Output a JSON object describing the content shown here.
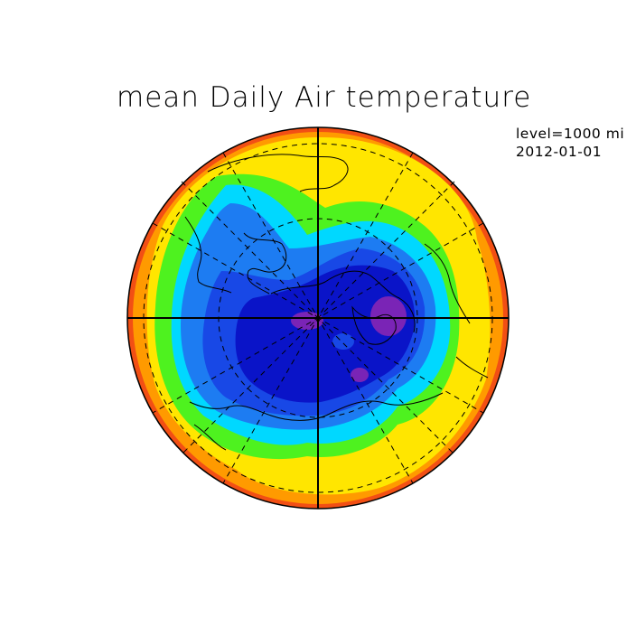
{
  "title": "mean Daily Air temperature",
  "meta": {
    "level": "level=1000 mi",
    "date": "2012-01-01"
  },
  "map": {
    "projection": "north-polar-stereographic",
    "grid_lines": "dashed",
    "palette": {
      "red": "#f24f14",
      "orange": "#ff9a00",
      "yellow": "#ffe600",
      "green": "#4ef21f",
      "cyan": "#00d8ff",
      "blue_light": "#1d7cf2",
      "blue": "#1848e6",
      "blue_dark": "#0a14c8",
      "purple": "#7a24b6"
    }
  }
}
